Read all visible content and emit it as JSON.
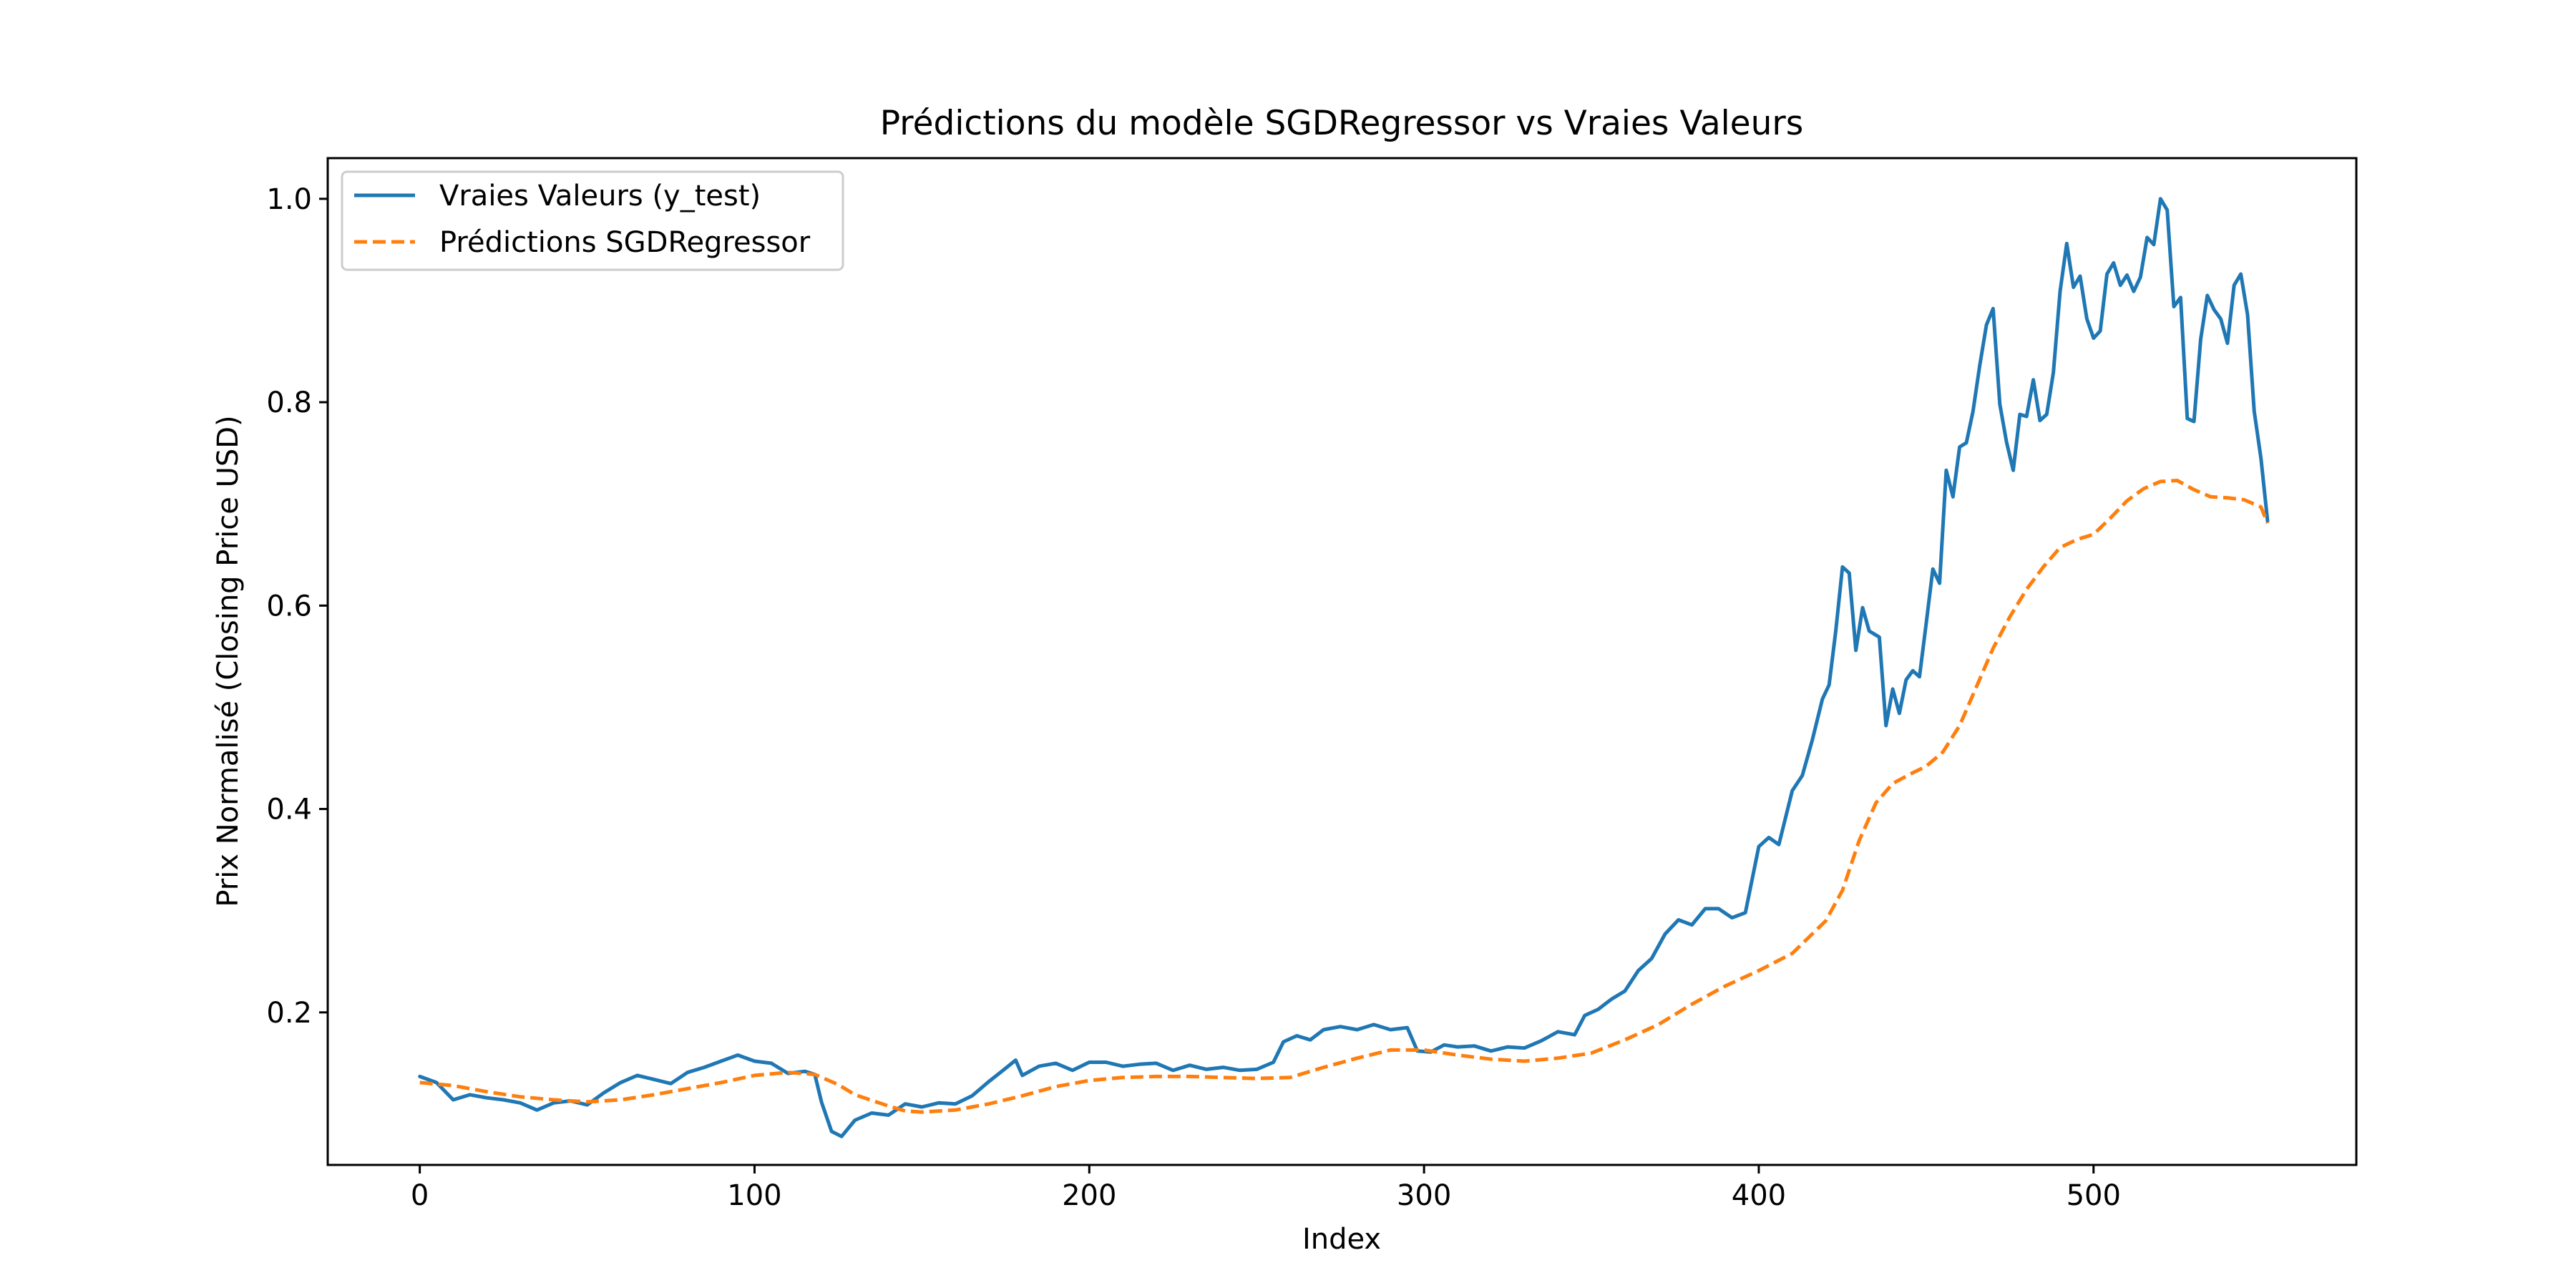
{
  "chart_data": {
    "type": "line",
    "title": "Prédictions du modèle SGDRegressor vs Vraies Valeurs",
    "xlabel": "Index",
    "ylabel": "Prix Normalisé (Closing Price USD)",
    "xlim": [
      -27.5,
      578.5
    ],
    "ylim": [
      0.05,
      1.04
    ],
    "xticks": [
      0,
      100,
      200,
      300,
      400,
      500
    ],
    "yticks": [
      0.2,
      0.4,
      0.6,
      0.8,
      1.0
    ],
    "xtick_labels": [
      "0",
      "100",
      "200",
      "300",
      "400",
      "500"
    ],
    "ytick_labels": [
      "0.2",
      "0.4",
      "0.6",
      "0.8",
      "1.0"
    ],
    "grid": false,
    "legend_position": "upper left",
    "series": [
      {
        "name": "Vraies Valeurs (y_test)",
        "color": "#1f77b4",
        "style": "solid",
        "points": [
          [
            0,
            0.137
          ],
          [
            5,
            0.131
          ],
          [
            10,
            0.114
          ],
          [
            15,
            0.119
          ],
          [
            20,
            0.116
          ],
          [
            25,
            0.114
          ],
          [
            30,
            0.111
          ],
          [
            35,
            0.104
          ],
          [
            40,
            0.111
          ],
          [
            45,
            0.113
          ],
          [
            50,
            0.109
          ],
          [
            55,
            0.121
          ],
          [
            60,
            0.131
          ],
          [
            65,
            0.138
          ],
          [
            70,
            0.134
          ],
          [
            75,
            0.13
          ],
          [
            80,
            0.141
          ],
          [
            85,
            0.146
          ],
          [
            90,
            0.152
          ],
          [
            95,
            0.158
          ],
          [
            100,
            0.152
          ],
          [
            105,
            0.15
          ],
          [
            110,
            0.14
          ],
          [
            115,
            0.142
          ],
          [
            118,
            0.139
          ],
          [
            120,
            0.112
          ],
          [
            123,
            0.083
          ],
          [
            126,
            0.078
          ],
          [
            130,
            0.094
          ],
          [
            135,
            0.101
          ],
          [
            140,
            0.099
          ],
          [
            145,
            0.11
          ],
          [
            150,
            0.107
          ],
          [
            155,
            0.111
          ],
          [
            160,
            0.11
          ],
          [
            165,
            0.118
          ],
          [
            170,
            0.132
          ],
          [
            175,
            0.145
          ],
          [
            178,
            0.153
          ],
          [
            180,
            0.138
          ],
          [
            185,
            0.147
          ],
          [
            190,
            0.15
          ],
          [
            195,
            0.143
          ],
          [
            200,
            0.151
          ],
          [
            205,
            0.151
          ],
          [
            210,
            0.147
          ],
          [
            215,
            0.149
          ],
          [
            220,
            0.15
          ],
          [
            225,
            0.143
          ],
          [
            230,
            0.148
          ],
          [
            235,
            0.144
          ],
          [
            240,
            0.146
          ],
          [
            245,
            0.143
          ],
          [
            250,
            0.144
          ],
          [
            255,
            0.151
          ],
          [
            258,
            0.171
          ],
          [
            262,
            0.177
          ],
          [
            266,
            0.173
          ],
          [
            270,
            0.183
          ],
          [
            275,
            0.186
          ],
          [
            280,
            0.183
          ],
          [
            285,
            0.188
          ],
          [
            290,
            0.183
          ],
          [
            295,
            0.185
          ],
          [
            298,
            0.162
          ],
          [
            302,
            0.161
          ],
          [
            306,
            0.168
          ],
          [
            310,
            0.166
          ],
          [
            315,
            0.167
          ],
          [
            320,
            0.162
          ],
          [
            325,
            0.166
          ],
          [
            330,
            0.165
          ],
          [
            335,
            0.172
          ],
          [
            340,
            0.181
          ],
          [
            345,
            0.178
          ],
          [
            348,
            0.197
          ],
          [
            352,
            0.203
          ],
          [
            356,
            0.213
          ],
          [
            360,
            0.221
          ],
          [
            364,
            0.241
          ],
          [
            368,
            0.253
          ],
          [
            372,
            0.277
          ],
          [
            376,
            0.291
          ],
          [
            380,
            0.286
          ],
          [
            384,
            0.302
          ],
          [
            388,
            0.302
          ],
          [
            392,
            0.293
          ],
          [
            396,
            0.298
          ],
          [
            400,
            0.363
          ],
          [
            403,
            0.372
          ],
          [
            406,
            0.365
          ],
          [
            410,
            0.418
          ],
          [
            413,
            0.433
          ],
          [
            416,
            0.468
          ],
          [
            419,
            0.508
          ],
          [
            421,
            0.522
          ],
          [
            423,
            0.575
          ],
          [
            425,
            0.638
          ],
          [
            427,
            0.632
          ],
          [
            429,
            0.556
          ],
          [
            431,
            0.598
          ],
          [
            433,
            0.575
          ],
          [
            436,
            0.569
          ],
          [
            438,
            0.482
          ],
          [
            440,
            0.518
          ],
          [
            442,
            0.494
          ],
          [
            444,
            0.527
          ],
          [
            446,
            0.536
          ],
          [
            448,
            0.53
          ],
          [
            450,
            0.582
          ],
          [
            452,
            0.636
          ],
          [
            454,
            0.622
          ],
          [
            456,
            0.733
          ],
          [
            458,
            0.707
          ],
          [
            460,
            0.756
          ],
          [
            462,
            0.76
          ],
          [
            464,
            0.791
          ],
          [
            466,
            0.836
          ],
          [
            468,
            0.876
          ],
          [
            470,
            0.892
          ],
          [
            472,
            0.798
          ],
          [
            474,
            0.761
          ],
          [
            476,
            0.733
          ],
          [
            478,
            0.788
          ],
          [
            480,
            0.786
          ],
          [
            482,
            0.822
          ],
          [
            484,
            0.782
          ],
          [
            486,
            0.788
          ],
          [
            488,
            0.829
          ],
          [
            490,
            0.909
          ],
          [
            492,
            0.956
          ],
          [
            494,
            0.913
          ],
          [
            496,
            0.924
          ],
          [
            498,
            0.882
          ],
          [
            500,
            0.863
          ],
          [
            502,
            0.87
          ],
          [
            504,
            0.926
          ],
          [
            506,
            0.937
          ],
          [
            508,
            0.915
          ],
          [
            510,
            0.925
          ],
          [
            512,
            0.909
          ],
          [
            514,
            0.923
          ],
          [
            516,
            0.962
          ],
          [
            518,
            0.955
          ],
          [
            520,
            1.0
          ],
          [
            522,
            0.989
          ],
          [
            524,
            0.894
          ],
          [
            526,
            0.903
          ],
          [
            528,
            0.784
          ],
          [
            530,
            0.781
          ],
          [
            532,
            0.862
          ],
          [
            534,
            0.905
          ],
          [
            536,
            0.891
          ],
          [
            538,
            0.882
          ],
          [
            540,
            0.858
          ],
          [
            542,
            0.915
          ],
          [
            544,
            0.926
          ],
          [
            546,
            0.886
          ],
          [
            548,
            0.791
          ],
          [
            550,
            0.745
          ],
          [
            552,
            0.683
          ]
        ]
      },
      {
        "name": "Prédictions SGDRegressor",
        "color": "#ff7f0e",
        "style": "dashed",
        "points": [
          [
            0,
            0.131
          ],
          [
            10,
            0.128
          ],
          [
            20,
            0.122
          ],
          [
            30,
            0.117
          ],
          [
            40,
            0.114
          ],
          [
            50,
            0.112
          ],
          [
            60,
            0.114
          ],
          [
            70,
            0.119
          ],
          [
            80,
            0.125
          ],
          [
            90,
            0.131
          ],
          [
            100,
            0.138
          ],
          [
            110,
            0.141
          ],
          [
            118,
            0.139
          ],
          [
            125,
            0.129
          ],
          [
            130,
            0.119
          ],
          [
            140,
            0.108
          ],
          [
            145,
            0.103
          ],
          [
            150,
            0.102
          ],
          [
            160,
            0.104
          ],
          [
            170,
            0.11
          ],
          [
            180,
            0.118
          ],
          [
            190,
            0.127
          ],
          [
            200,
            0.133
          ],
          [
            210,
            0.136
          ],
          [
            220,
            0.137
          ],
          [
            230,
            0.137
          ],
          [
            240,
            0.136
          ],
          [
            250,
            0.135
          ],
          [
            260,
            0.136
          ],
          [
            270,
            0.146
          ],
          [
            280,
            0.155
          ],
          [
            290,
            0.163
          ],
          [
            300,
            0.163
          ],
          [
            310,
            0.158
          ],
          [
            320,
            0.154
          ],
          [
            330,
            0.152
          ],
          [
            340,
            0.155
          ],
          [
            350,
            0.16
          ],
          [
            360,
            0.173
          ],
          [
            370,
            0.188
          ],
          [
            380,
            0.208
          ],
          [
            390,
            0.226
          ],
          [
            400,
            0.241
          ],
          [
            410,
            0.258
          ],
          [
            420,
            0.29
          ],
          [
            425,
            0.32
          ],
          [
            430,
            0.369
          ],
          [
            435,
            0.406
          ],
          [
            440,
            0.425
          ],
          [
            445,
            0.434
          ],
          [
            450,
            0.442
          ],
          [
            455,
            0.456
          ],
          [
            460,
            0.482
          ],
          [
            465,
            0.52
          ],
          [
            470,
            0.558
          ],
          [
            475,
            0.589
          ],
          [
            480,
            0.616
          ],
          [
            485,
            0.638
          ],
          [
            490,
            0.657
          ],
          [
            495,
            0.665
          ],
          [
            500,
            0.67
          ],
          [
            505,
            0.686
          ],
          [
            510,
            0.703
          ],
          [
            515,
            0.715
          ],
          [
            520,
            0.722
          ],
          [
            525,
            0.723
          ],
          [
            530,
            0.714
          ],
          [
            535,
            0.707
          ],
          [
            540,
            0.706
          ],
          [
            545,
            0.704
          ],
          [
            550,
            0.697
          ],
          [
            552,
            0.681
          ]
        ]
      }
    ]
  }
}
